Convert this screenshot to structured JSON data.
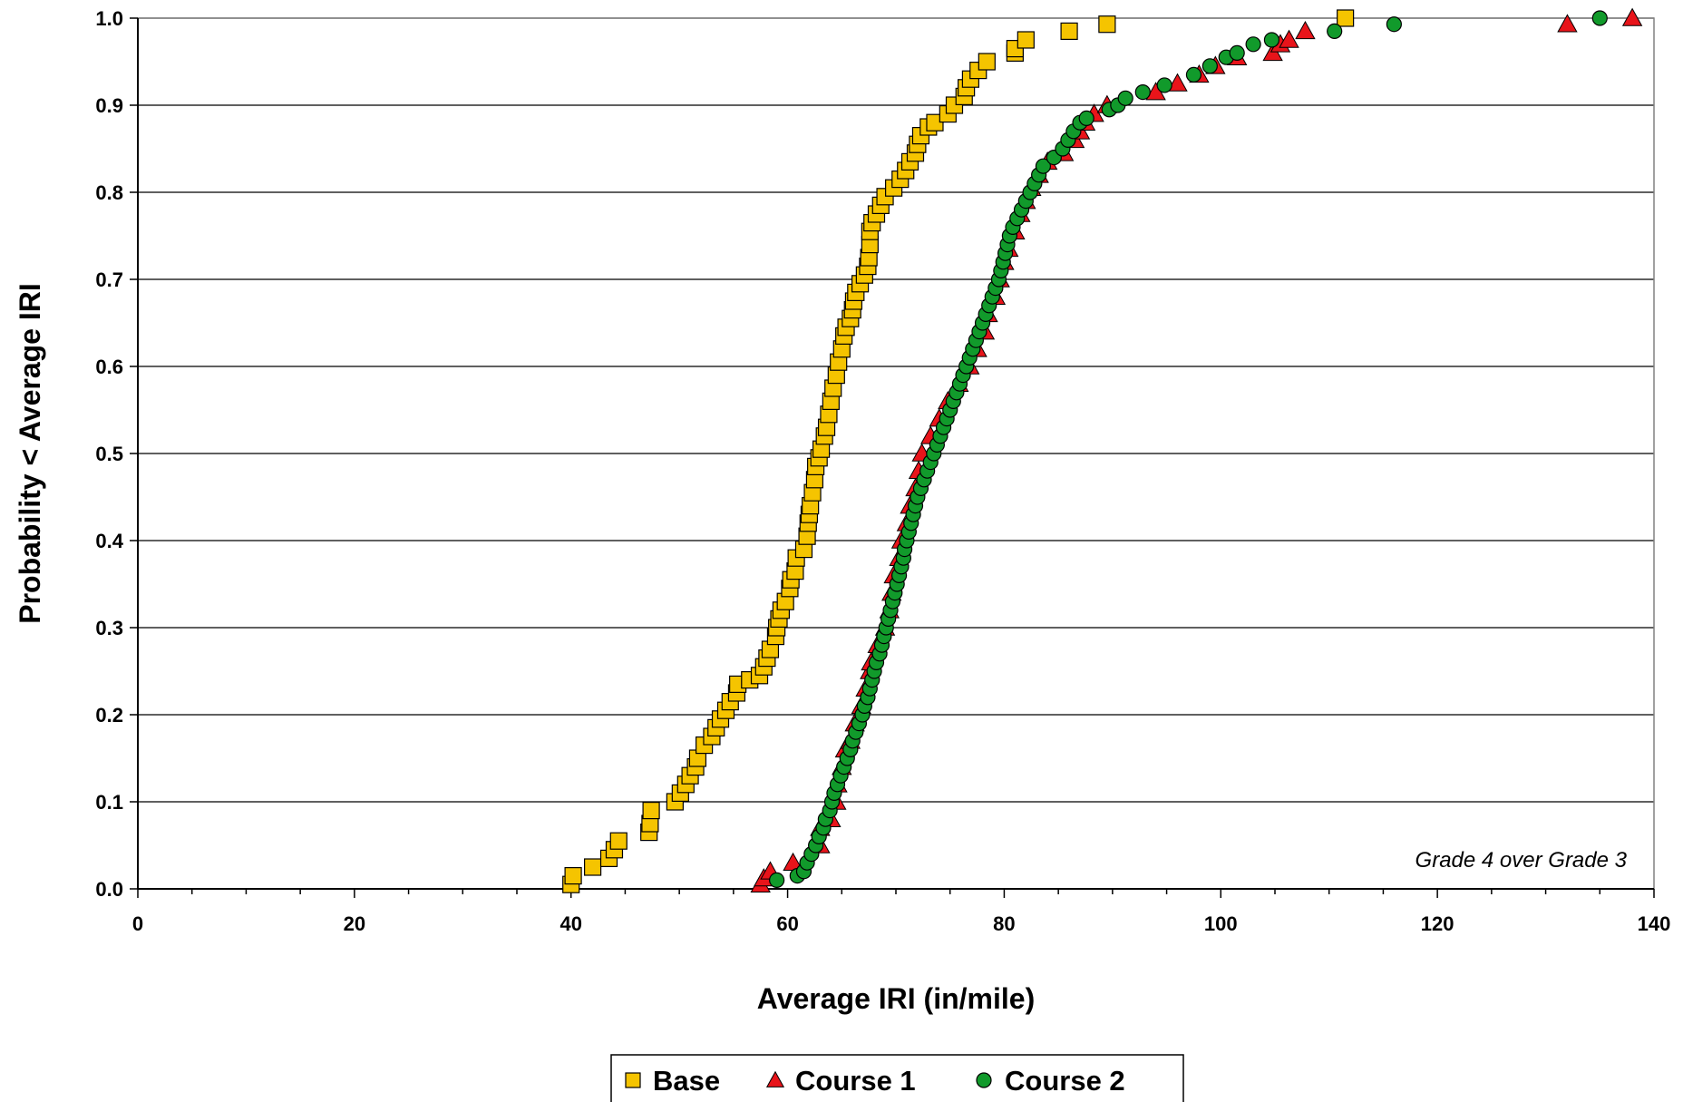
{
  "chart_data": {
    "type": "scatter",
    "title": "",
    "xlabel": "Average IRI (in/mile)",
    "ylabel": "Probability < Average IRI",
    "xlim": [
      0,
      140
    ],
    "ylim": [
      0,
      1
    ],
    "x_ticks": [
      "0",
      "20",
      "40",
      "60",
      "80",
      "100",
      "120",
      "140"
    ],
    "y_ticks": [
      "0.0",
      "0.1",
      "0.2",
      "0.3",
      "0.4",
      "0.5",
      "0.6",
      "0.7",
      "0.8",
      "0.9",
      "1.0"
    ],
    "grid": "horizontal",
    "legend_position": "bottom-center",
    "annotation": "Grade 4 over Grade 3",
    "series": [
      {
        "name": "Base",
        "marker": "square",
        "color": "#F5C400",
        "points": [
          [
            40,
            0.005
          ],
          [
            40.2,
            0.015
          ],
          [
            42,
            0.025
          ],
          [
            43.5,
            0.035
          ],
          [
            44,
            0.045
          ],
          [
            44.4,
            0.055
          ],
          [
            47.2,
            0.065
          ],
          [
            47.3,
            0.075
          ],
          [
            47.4,
            0.09
          ],
          [
            49.6,
            0.1
          ],
          [
            50.1,
            0.11
          ],
          [
            50.6,
            0.12
          ],
          [
            51,
            0.13
          ],
          [
            51.5,
            0.14
          ],
          [
            51.7,
            0.15
          ],
          [
            52.3,
            0.165
          ],
          [
            53,
            0.175
          ],
          [
            53.4,
            0.185
          ],
          [
            53.8,
            0.195
          ],
          [
            54.3,
            0.205
          ],
          [
            54.7,
            0.215
          ],
          [
            55.3,
            0.225
          ],
          [
            55.4,
            0.235
          ],
          [
            56.5,
            0.24
          ],
          [
            57.4,
            0.245
          ],
          [
            57.8,
            0.255
          ],
          [
            58.1,
            0.265
          ],
          [
            58.4,
            0.275
          ],
          [
            58.9,
            0.29
          ],
          [
            59,
            0.3
          ],
          [
            59.2,
            0.31
          ],
          [
            59.4,
            0.32
          ],
          [
            59.8,
            0.33
          ],
          [
            60.2,
            0.345
          ],
          [
            60.3,
            0.355
          ],
          [
            60.7,
            0.365
          ],
          [
            60.8,
            0.38
          ],
          [
            61.5,
            0.39
          ],
          [
            61.8,
            0.405
          ],
          [
            61.9,
            0.42
          ],
          [
            62,
            0.43
          ],
          [
            62.1,
            0.44
          ],
          [
            62.3,
            0.455
          ],
          [
            62.5,
            0.47
          ],
          [
            62.6,
            0.485
          ],
          [
            62.9,
            0.495
          ],
          [
            63.1,
            0.505
          ],
          [
            63.4,
            0.52
          ],
          [
            63.6,
            0.53
          ],
          [
            63.8,
            0.545
          ],
          [
            64,
            0.56
          ],
          [
            64.2,
            0.575
          ],
          [
            64.5,
            0.59
          ],
          [
            64.7,
            0.605
          ],
          [
            65,
            0.62
          ],
          [
            65.2,
            0.635
          ],
          [
            65.4,
            0.645
          ],
          [
            65.8,
            0.655
          ],
          [
            66,
            0.665
          ],
          [
            66.1,
            0.675
          ],
          [
            66.3,
            0.685
          ],
          [
            66.7,
            0.695
          ],
          [
            67.1,
            0.705
          ],
          [
            67.4,
            0.715
          ],
          [
            67.5,
            0.725
          ],
          [
            67.6,
            0.74
          ],
          [
            67.6,
            0.755
          ],
          [
            67.8,
            0.765
          ],
          [
            68.2,
            0.775
          ],
          [
            68.6,
            0.785
          ],
          [
            69,
            0.795
          ],
          [
            69.8,
            0.805
          ],
          [
            70.4,
            0.815
          ],
          [
            70.9,
            0.825
          ],
          [
            71.3,
            0.835
          ],
          [
            71.8,
            0.845
          ],
          [
            72,
            0.855
          ],
          [
            72.3,
            0.865
          ],
          [
            73,
            0.875
          ],
          [
            73.6,
            0.88
          ],
          [
            74.8,
            0.89
          ],
          [
            75.4,
            0.9
          ],
          [
            76.3,
            0.91
          ],
          [
            76.5,
            0.92
          ],
          [
            76.9,
            0.93
          ],
          [
            77.6,
            0.94
          ],
          [
            78.4,
            0.95
          ],
          [
            81,
            0.96
          ],
          [
            81,
            0.965
          ],
          [
            82,
            0.975
          ],
          [
            86,
            0.985
          ],
          [
            89.5,
            0.993
          ],
          [
            111.5,
            1.0
          ]
        ]
      },
      {
        "name": "Course 1",
        "marker": "triangle",
        "color": "#E8141A",
        "points": [
          [
            57.5,
            0.005
          ],
          [
            57.8,
            0.012
          ],
          [
            58.4,
            0.02
          ],
          [
            60.5,
            0.03
          ],
          [
            63,
            0.05
          ],
          [
            63,
            0.07
          ],
          [
            64,
            0.08
          ],
          [
            64.5,
            0.1
          ],
          [
            64.6,
            0.12
          ],
          [
            65,
            0.14
          ],
          [
            65.3,
            0.16
          ],
          [
            65.8,
            0.17
          ],
          [
            66.2,
            0.19
          ],
          [
            66.8,
            0.21
          ],
          [
            67.2,
            0.23
          ],
          [
            67.6,
            0.25
          ],
          [
            67.7,
            0.26
          ],
          [
            68.3,
            0.28
          ],
          [
            69,
            0.3
          ],
          [
            69.4,
            0.32
          ],
          [
            69.6,
            0.34
          ],
          [
            69.8,
            0.36
          ],
          [
            70.3,
            0.38
          ],
          [
            70.5,
            0.4
          ],
          [
            71,
            0.42
          ],
          [
            71.3,
            0.44
          ],
          [
            71.8,
            0.46
          ],
          [
            72.1,
            0.48
          ],
          [
            72.4,
            0.5
          ],
          [
            73.2,
            0.52
          ],
          [
            74,
            0.54
          ],
          [
            74.8,
            0.56
          ],
          [
            75.8,
            0.58
          ],
          [
            76.8,
            0.6
          ],
          [
            77.5,
            0.62
          ],
          [
            78.2,
            0.64
          ],
          [
            78.5,
            0.66
          ],
          [
            79.2,
            0.68
          ],
          [
            79.6,
            0.7
          ],
          [
            80,
            0.72
          ],
          [
            80.4,
            0.735
          ],
          [
            81,
            0.755
          ],
          [
            81.5,
            0.775
          ],
          [
            82,
            0.79
          ],
          [
            82.5,
            0.805
          ],
          [
            83.2,
            0.82
          ],
          [
            84,
            0.835
          ],
          [
            85.5,
            0.845
          ],
          [
            86.5,
            0.86
          ],
          [
            87,
            0.87
          ],
          [
            87.5,
            0.88
          ],
          [
            88.3,
            0.89
          ],
          [
            89.5,
            0.9
          ],
          [
            94,
            0.915
          ],
          [
            96,
            0.925
          ],
          [
            98,
            0.935
          ],
          [
            99.5,
            0.945
          ],
          [
            101.5,
            0.955
          ],
          [
            104.8,
            0.96
          ],
          [
            105.5,
            0.97
          ],
          [
            106.3,
            0.975
          ],
          [
            107.8,
            0.985
          ],
          [
            132,
            0.993
          ],
          [
            138,
            1.0
          ]
        ]
      },
      {
        "name": "Course 2",
        "marker": "circle",
        "color": "#119A2B",
        "points": [
          [
            59,
            0.01
          ],
          [
            60.9,
            0.015
          ],
          [
            61.5,
            0.02
          ],
          [
            61.8,
            0.03
          ],
          [
            62.2,
            0.04
          ],
          [
            62.6,
            0.05
          ],
          [
            62.9,
            0.06
          ],
          [
            63.3,
            0.07
          ],
          [
            63.5,
            0.08
          ],
          [
            63.9,
            0.09
          ],
          [
            64.1,
            0.1
          ],
          [
            64.3,
            0.11
          ],
          [
            64.6,
            0.12
          ],
          [
            64.9,
            0.13
          ],
          [
            65.2,
            0.14
          ],
          [
            65.5,
            0.15
          ],
          [
            65.8,
            0.16
          ],
          [
            66,
            0.17
          ],
          [
            66.3,
            0.18
          ],
          [
            66.6,
            0.19
          ],
          [
            66.9,
            0.2
          ],
          [
            67.1,
            0.21
          ],
          [
            67.4,
            0.22
          ],
          [
            67.6,
            0.23
          ],
          [
            67.8,
            0.24
          ],
          [
            68,
            0.25
          ],
          [
            68.2,
            0.26
          ],
          [
            68.5,
            0.27
          ],
          [
            68.7,
            0.28
          ],
          [
            68.9,
            0.29
          ],
          [
            69.1,
            0.3
          ],
          [
            69.3,
            0.31
          ],
          [
            69.5,
            0.32
          ],
          [
            69.7,
            0.33
          ],
          [
            69.9,
            0.34
          ],
          [
            70.1,
            0.35
          ],
          [
            70.3,
            0.36
          ],
          [
            70.5,
            0.37
          ],
          [
            70.7,
            0.38
          ],
          [
            70.8,
            0.39
          ],
          [
            71,
            0.4
          ],
          [
            71.2,
            0.41
          ],
          [
            71.4,
            0.42
          ],
          [
            71.6,
            0.43
          ],
          [
            71.8,
            0.44
          ],
          [
            72,
            0.45
          ],
          [
            72.3,
            0.46
          ],
          [
            72.6,
            0.47
          ],
          [
            72.9,
            0.48
          ],
          [
            73.2,
            0.49
          ],
          [
            73.5,
            0.5
          ],
          [
            73.8,
            0.51
          ],
          [
            74.1,
            0.52
          ],
          [
            74.4,
            0.53
          ],
          [
            74.7,
            0.54
          ],
          [
            75,
            0.55
          ],
          [
            75.3,
            0.56
          ],
          [
            75.6,
            0.57
          ],
          [
            75.9,
            0.58
          ],
          [
            76.2,
            0.59
          ],
          [
            76.5,
            0.6
          ],
          [
            76.8,
            0.61
          ],
          [
            77.1,
            0.62
          ],
          [
            77.4,
            0.63
          ],
          [
            77.7,
            0.64
          ],
          [
            78,
            0.65
          ],
          [
            78.3,
            0.66
          ],
          [
            78.6,
            0.67
          ],
          [
            78.9,
            0.68
          ],
          [
            79.2,
            0.69
          ],
          [
            79.5,
            0.7
          ],
          [
            79.7,
            0.71
          ],
          [
            79.9,
            0.72
          ],
          [
            80.1,
            0.73
          ],
          [
            80.3,
            0.74
          ],
          [
            80.5,
            0.75
          ],
          [
            80.8,
            0.76
          ],
          [
            81.2,
            0.77
          ],
          [
            81.6,
            0.78
          ],
          [
            82,
            0.79
          ],
          [
            82.4,
            0.8
          ],
          [
            82.8,
            0.81
          ],
          [
            83.2,
            0.82
          ],
          [
            83.6,
            0.83
          ],
          [
            84.6,
            0.84
          ],
          [
            85.4,
            0.85
          ],
          [
            85.9,
            0.86
          ],
          [
            86.4,
            0.87
          ],
          [
            87,
            0.88
          ],
          [
            87.6,
            0.885
          ],
          [
            89.7,
            0.895
          ],
          [
            90.5,
            0.9
          ],
          [
            91.2,
            0.908
          ],
          [
            92.8,
            0.915
          ],
          [
            94.8,
            0.923
          ],
          [
            97.5,
            0.935
          ],
          [
            99,
            0.945
          ],
          [
            100.5,
            0.955
          ],
          [
            101.5,
            0.96
          ],
          [
            103,
            0.97
          ],
          [
            104.7,
            0.975
          ],
          [
            110.5,
            0.985
          ],
          [
            116,
            0.993
          ],
          [
            135,
            1.0
          ]
        ]
      }
    ]
  }
}
